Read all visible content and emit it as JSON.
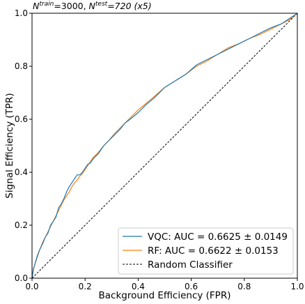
{
  "chart_data": {
    "type": "line",
    "title": {
      "n1": "N",
      "train_sup": "train",
      "eq1": "=3000, ",
      "n2": "N",
      "test_sup": "test",
      "eq2": "=720 (x5)"
    },
    "xlabel": "Background Efficiency (FPR)",
    "ylabel": "Signal Efficiency (TPR)",
    "xlim": [
      0,
      1
    ],
    "ylim": [
      0,
      1
    ],
    "xticks": [
      "0.0",
      "0.2",
      "0.4",
      "0.6",
      "0.8",
      "1.0"
    ],
    "yticks": [
      "0.0",
      "0.2",
      "0.4",
      "0.6",
      "0.8",
      "1.0"
    ],
    "grid": false,
    "legend_position": "bottom-right",
    "series": [
      {
        "name": "VQC: AUC = 0.6625 ± 0.0149",
        "color": "#1f77b4",
        "style": "solid",
        "x": [
          0,
          0.005,
          0.01,
          0.02,
          0.03,
          0.04,
          0.05,
          0.06,
          0.07,
          0.08,
          0.09,
          0.1,
          0.11,
          0.12,
          0.13,
          0.14,
          0.15,
          0.16,
          0.17,
          0.18,
          0.19,
          0.2,
          0.21,
          0.22,
          0.23,
          0.24,
          0.25,
          0.27,
          0.29,
          0.31,
          0.33,
          0.35,
          0.37,
          0.4,
          0.43,
          0.46,
          0.5,
          0.54,
          0.58,
          0.62,
          0.66,
          0.7,
          0.74,
          0.78,
          0.82,
          0.86,
          0.9,
          0.94,
          0.97,
          1.0
        ],
        "y": [
          0,
          0.035,
          0.05,
          0.085,
          0.11,
          0.13,
          0.155,
          0.17,
          0.2,
          0.215,
          0.23,
          0.265,
          0.28,
          0.3,
          0.325,
          0.345,
          0.36,
          0.375,
          0.39,
          0.39,
          0.4,
          0.415,
          0.43,
          0.435,
          0.45,
          0.46,
          0.47,
          0.5,
          0.52,
          0.54,
          0.56,
          0.585,
          0.6,
          0.625,
          0.655,
          0.68,
          0.72,
          0.745,
          0.77,
          0.805,
          0.825,
          0.845,
          0.865,
          0.885,
          0.905,
          0.925,
          0.945,
          0.96,
          0.98,
          1.0
        ]
      },
      {
        "name": "RF: AUC = 0.6622 ± 0.0153",
        "color": "#ff7f0e",
        "style": "solid",
        "x": [
          0,
          0.005,
          0.01,
          0.02,
          0.03,
          0.04,
          0.05,
          0.06,
          0.07,
          0.08,
          0.09,
          0.1,
          0.11,
          0.12,
          0.13,
          0.14,
          0.15,
          0.16,
          0.17,
          0.18,
          0.19,
          0.2,
          0.21,
          0.22,
          0.23,
          0.24,
          0.25,
          0.27,
          0.29,
          0.31,
          0.33,
          0.35,
          0.37,
          0.4,
          0.43,
          0.46,
          0.5,
          0.54,
          0.58,
          0.62,
          0.66,
          0.7,
          0.74,
          0.78,
          0.82,
          0.86,
          0.9,
          0.94,
          0.97,
          1.0
        ],
        "y": [
          0,
          0.03,
          0.05,
          0.08,
          0.11,
          0.135,
          0.155,
          0.175,
          0.195,
          0.215,
          0.235,
          0.255,
          0.275,
          0.295,
          0.31,
          0.325,
          0.345,
          0.36,
          0.37,
          0.385,
          0.395,
          0.41,
          0.425,
          0.44,
          0.455,
          0.465,
          0.475,
          0.5,
          0.52,
          0.545,
          0.565,
          0.585,
          0.605,
          0.635,
          0.66,
          0.685,
          0.72,
          0.745,
          0.77,
          0.8,
          0.82,
          0.845,
          0.87,
          0.885,
          0.905,
          0.92,
          0.94,
          0.96,
          0.975,
          1.0
        ]
      },
      {
        "name": "Random Classifier",
        "color": "#000000",
        "style": "dashed",
        "x": [
          0,
          1
        ],
        "y": [
          0,
          1
        ]
      }
    ]
  }
}
